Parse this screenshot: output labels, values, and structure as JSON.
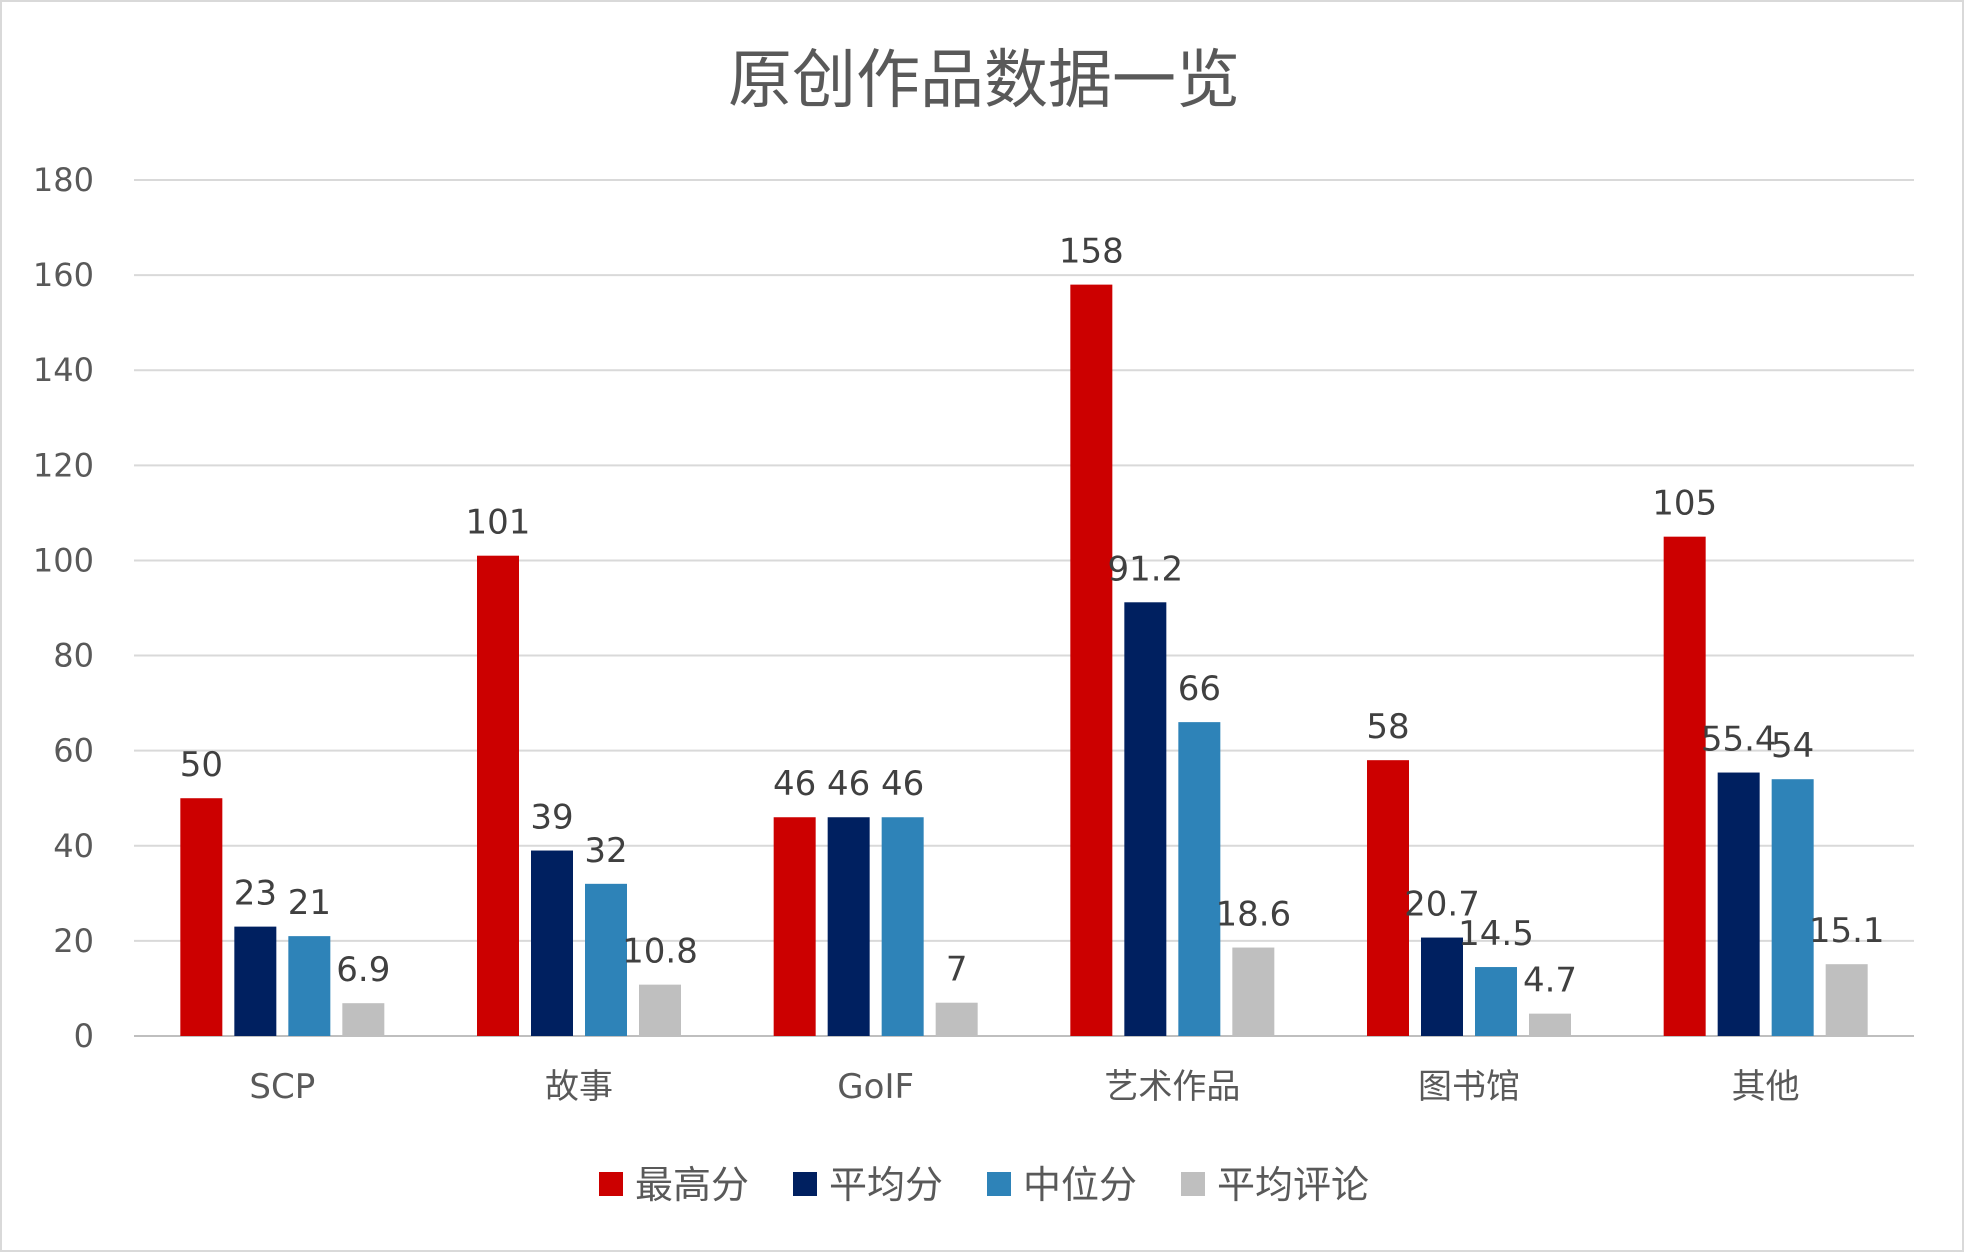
{
  "chart_data": {
    "type": "bar",
    "title": "原创作品数据一览",
    "xlabel": "",
    "ylabel": "",
    "ylim": [
      0,
      180
    ],
    "yticks": [
      0,
      20,
      40,
      60,
      80,
      100,
      120,
      140,
      160,
      180
    ],
    "grid": true,
    "legend_position": "bottom",
    "categories": [
      "SCP",
      "故事",
      "GoIF",
      "艺术作品",
      "图书馆",
      "其他"
    ],
    "series": [
      {
        "name": "最高分",
        "color": "#cc0000",
        "values": [
          50,
          101,
          46,
          158,
          58,
          105
        ],
        "labels": [
          "50",
          "101",
          "46",
          "158",
          "58",
          "105"
        ]
      },
      {
        "name": "平均分",
        "color": "#002060",
        "values": [
          23,
          39,
          46,
          91.2,
          20.7,
          55.4
        ],
        "labels": [
          "23",
          "39",
          "46",
          "91.2",
          "20.7",
          "55.4"
        ]
      },
      {
        "name": "中位分",
        "color": "#2e83b8",
        "values": [
          21,
          32,
          46,
          66,
          14.5,
          54
        ],
        "labels": [
          "21",
          "32",
          "46",
          "66",
          "14.5",
          "54"
        ]
      },
      {
        "name": "平均评论",
        "color": "#bfbfbf",
        "values": [
          6.9,
          10.8,
          7,
          18.6,
          4.7,
          15.1
        ],
        "labels": [
          "6.9",
          "10.8",
          "7",
          "18.6",
          "4.7",
          "15.1"
        ]
      }
    ]
  }
}
